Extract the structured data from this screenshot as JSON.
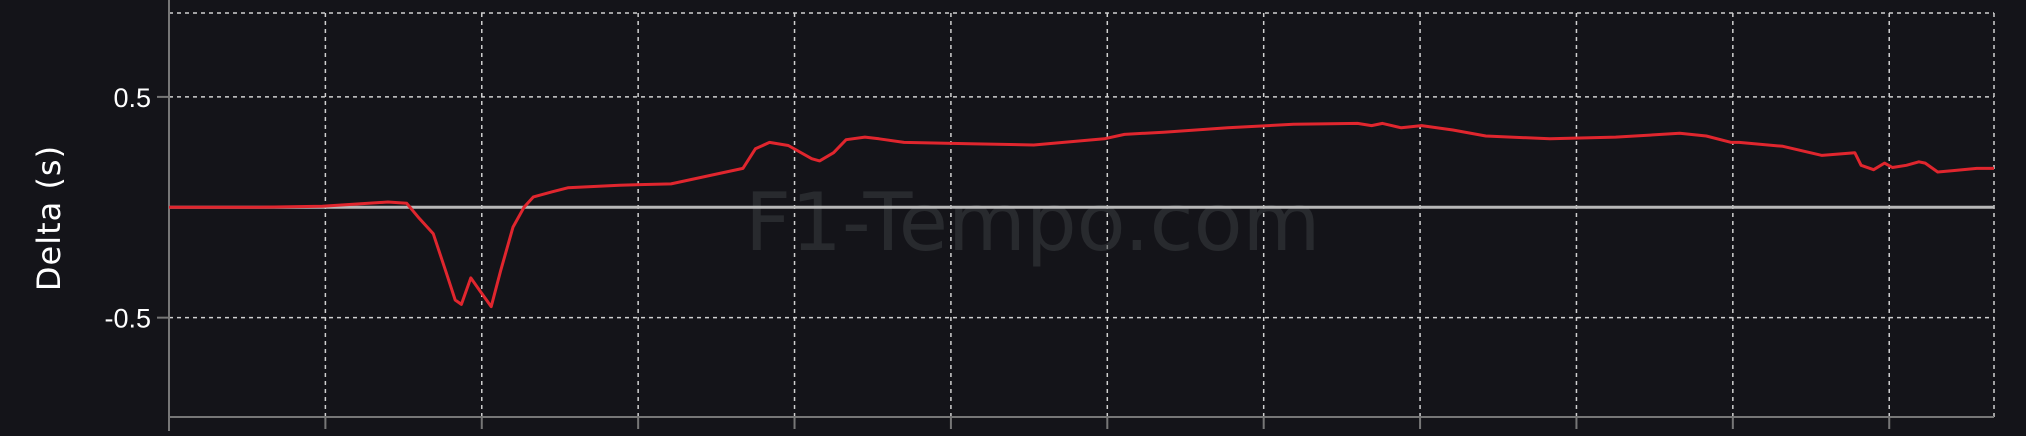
{
  "chart_data": {
    "type": "line",
    "title": "",
    "xlabel": "",
    "ylabel": "Delta (s)",
    "ylim": [
      -0.95,
      0.88
    ],
    "xlim": [
      0,
      11.67
    ],
    "grid": true,
    "y_ticks": [
      {
        "value": 0.5,
        "label": "0.5"
      },
      {
        "value": -0.5,
        "label": "-0.5"
      }
    ],
    "x_gridlines": [
      0,
      1,
      2,
      3,
      4,
      5,
      6,
      7,
      8,
      9,
      10,
      11
    ],
    "reference_line": {
      "value": 0,
      "color": "#b8b8b8"
    },
    "watermark": "F1-Tempo.com",
    "series": [
      {
        "color": "#e0262e",
        "x": [
          0,
          0.57,
          0.98,
          1.4,
          1.52,
          1.6,
          1.69,
          1.77,
          1.83,
          1.87,
          1.93,
          1.99,
          2.06,
          2.12,
          2.2,
          2.27,
          2.33,
          2.45,
          2.55,
          2.88,
          3.21,
          3.67,
          3.75,
          3.84,
          3.96,
          4.11,
          4.16,
          4.25,
          4.33,
          4.45,
          4.54,
          4.7,
          5.12,
          5.53,
          5.98,
          6.11,
          6.36,
          6.77,
          7.19,
          7.6,
          7.69,
          7.76,
          7.88,
          8.01,
          8.21,
          8.42,
          8.83,
          9.25,
          9.66,
          9.83,
          9.99,
          10.04,
          10.32,
          10.57,
          10.78,
          10.82,
          10.9,
          10.97,
          11.02,
          11.11,
          11.19,
          11.23,
          11.31,
          11.4,
          11.56,
          11.67
        ],
        "y": [
          0,
          0,
          0.005,
          0.024,
          0.018,
          -0.05,
          -0.12,
          -0.29,
          -0.42,
          -0.44,
          -0.32,
          -0.38,
          -0.45,
          -0.29,
          -0.09,
          0,
          0.047,
          0.07,
          0.088,
          0.1,
          0.106,
          0.176,
          0.265,
          0.294,
          0.28,
          0.22,
          0.21,
          0.247,
          0.306,
          0.318,
          0.31,
          0.294,
          0.288,
          0.282,
          0.31,
          0.33,
          0.34,
          0.36,
          0.376,
          0.38,
          0.37,
          0.38,
          0.36,
          0.37,
          0.35,
          0.323,
          0.31,
          0.318,
          0.335,
          0.323,
          0.294,
          0.294,
          0.276,
          0.235,
          0.247,
          0.19,
          0.17,
          0.2,
          0.18,
          0.19,
          0.206,
          0.2,
          0.16,
          0.165,
          0.176,
          0.176
        ]
      }
    ]
  }
}
